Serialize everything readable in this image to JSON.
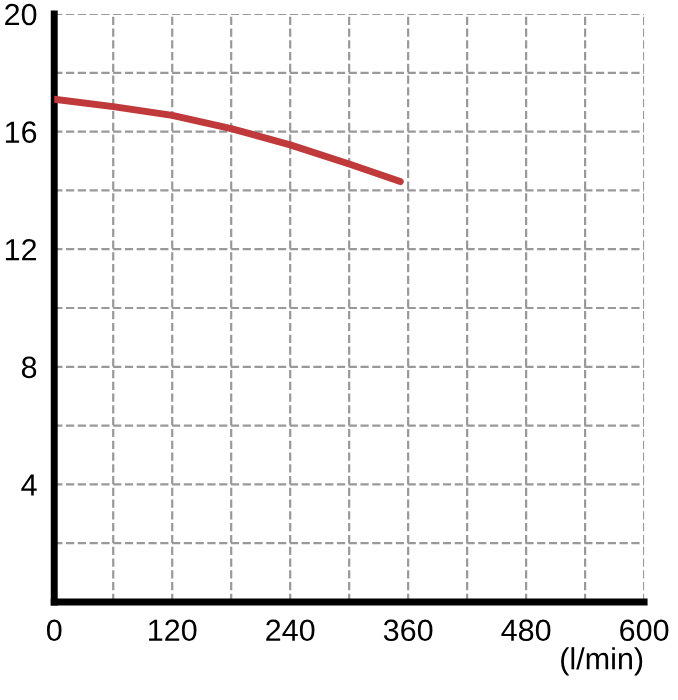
{
  "chart_data": {
    "type": "line",
    "xlabel": "(l/min)",
    "x": [
      0,
      60,
      120,
      180,
      240,
      300,
      352
    ],
    "series": [
      {
        "color": "#c0393b",
        "values": [
          17.1,
          16.85,
          16.55,
          16.1,
          15.55,
          14.9,
          14.3
        ]
      }
    ],
    "xlim": [
      0,
      600
    ],
    "ylim": [
      0,
      20
    ],
    "xticks": [
      0,
      {
        "value": 60,
        "label": null
      },
      120,
      {
        "value": 180,
        "label": null
      },
      240,
      {
        "value": 300,
        "label": null
      },
      360,
      {
        "value": 420,
        "label": null
      },
      480,
      {
        "value": 540,
        "label": null
      },
      600
    ],
    "yticks": [
      {
        "value": 2,
        "label": null
      },
      4,
      {
        "value": 6,
        "label": null
      },
      8,
      {
        "value": 10,
        "label": null
      },
      12,
      {
        "value": 14,
        "label": null
      },
      16,
      {
        "value": 18,
        "label": null
      },
      20
    ],
    "grid": true,
    "line_style": "solid",
    "marker": "none"
  }
}
